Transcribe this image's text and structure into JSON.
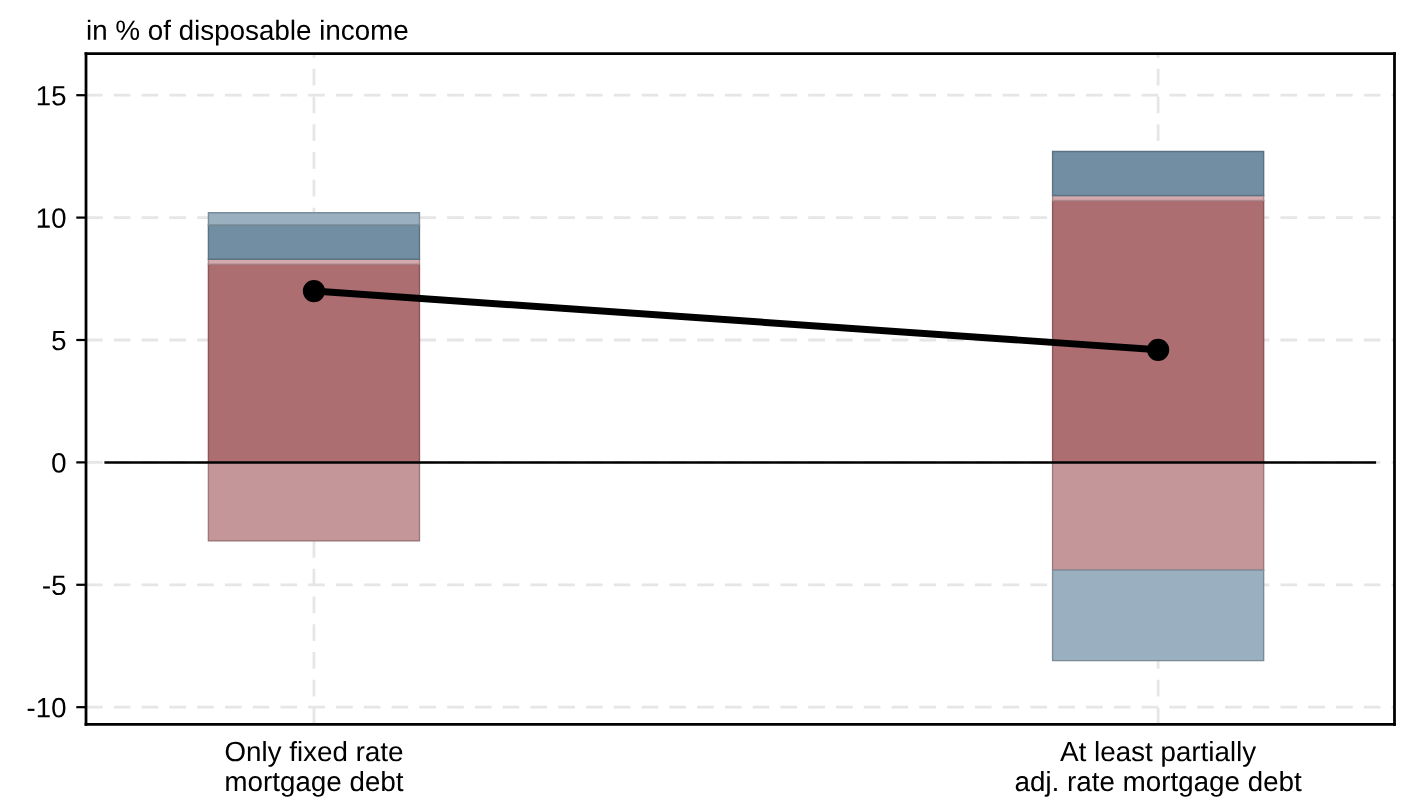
{
  "chart_data": {
    "type": "bar",
    "stacked": true,
    "ylabel": "in % of disposable income",
    "categories": [
      "Only fixed rate\nmortgage debt",
      "At least partially\nadj. rate mortgage debt"
    ],
    "series": [
      {
        "color": "#ad6e72",
        "values": [
          8.1,
          10.7
        ]
      },
      {
        "color": "#d4aaad",
        "values": [
          0.2,
          0.2
        ]
      },
      {
        "color": "#728ea3",
        "values": [
          1.4,
          1.8
        ]
      },
      {
        "color": "#9aafbf",
        "values": [
          0.5,
          null
        ]
      },
      {
        "color": "#c4969a",
        "values": [
          -3.2,
          -4.4
        ]
      },
      {
        "color": "#9aafbf",
        "values": [
          null,
          -3.7
        ]
      },
      {
        "type": "line",
        "color": "#000000",
        "marker": "circle",
        "values": [
          7.0,
          4.6
        ]
      }
    ],
    "ylim": [
      -10.7,
      16.7
    ],
    "yticks": [
      -10,
      -5,
      0,
      5,
      10,
      15
    ],
    "grid": true,
    "ref_lines": [
      {
        "axis": "y",
        "value": 0,
        "color": "#000000"
      }
    ]
  }
}
